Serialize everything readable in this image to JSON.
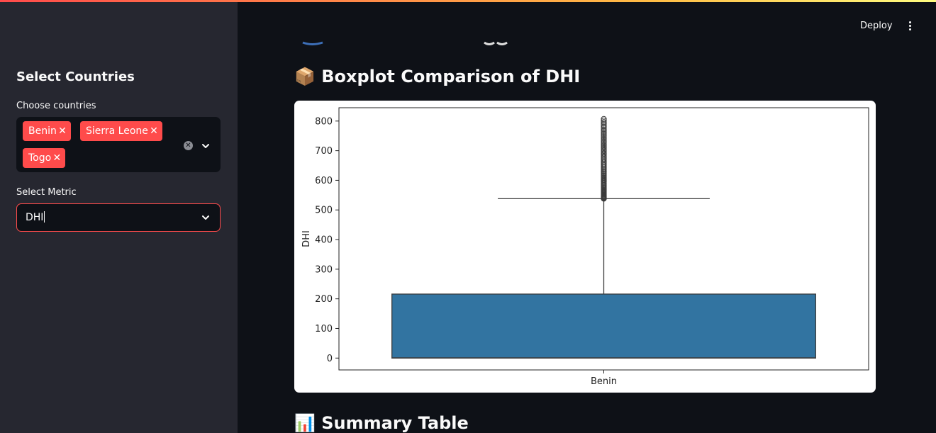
{
  "sidebar": {
    "title": "Select Countries",
    "countries_label": "Choose countries",
    "selected_countries": [
      "Benin",
      "Sierra Leone",
      "Togo"
    ],
    "metric_label": "Select Metric",
    "metric_value": "DHI"
  },
  "header": {
    "deploy_label": "Deploy"
  },
  "main": {
    "boxplot_heading": "📦 Boxplot Comparison of DHI",
    "summary_heading": "📊 Summary Table"
  },
  "colors": {
    "accent": "#ff4b4b",
    "box_fill": "#3274a1",
    "sidebar_bg": "#262730",
    "main_bg": "#0e1117"
  },
  "icons": {
    "tag_remove": "close-icon",
    "clear": "clear-icon",
    "dropdown": "chevron-down-icon",
    "menu": "vertical-dots-icon"
  },
  "chart_data": {
    "type": "box",
    "title": "",
    "xlabel": "",
    "ylabel": "DHI",
    "categories": [
      "Benin"
    ],
    "ylim": [
      -40,
      845
    ],
    "yticks": [
      0,
      100,
      200,
      300,
      400,
      500,
      600,
      700,
      800
    ],
    "yticklabels": [
      "0",
      "100",
      "200",
      "300",
      "400",
      "500",
      "600",
      "700",
      "800"
    ],
    "boxes": [
      {
        "category": "Benin",
        "whisker_low": 0,
        "q1": 0,
        "median": 1,
        "q3": 216,
        "whisker_high": 538,
        "outliers_range": [
          538,
          807
        ]
      }
    ],
    "grid": false
  }
}
